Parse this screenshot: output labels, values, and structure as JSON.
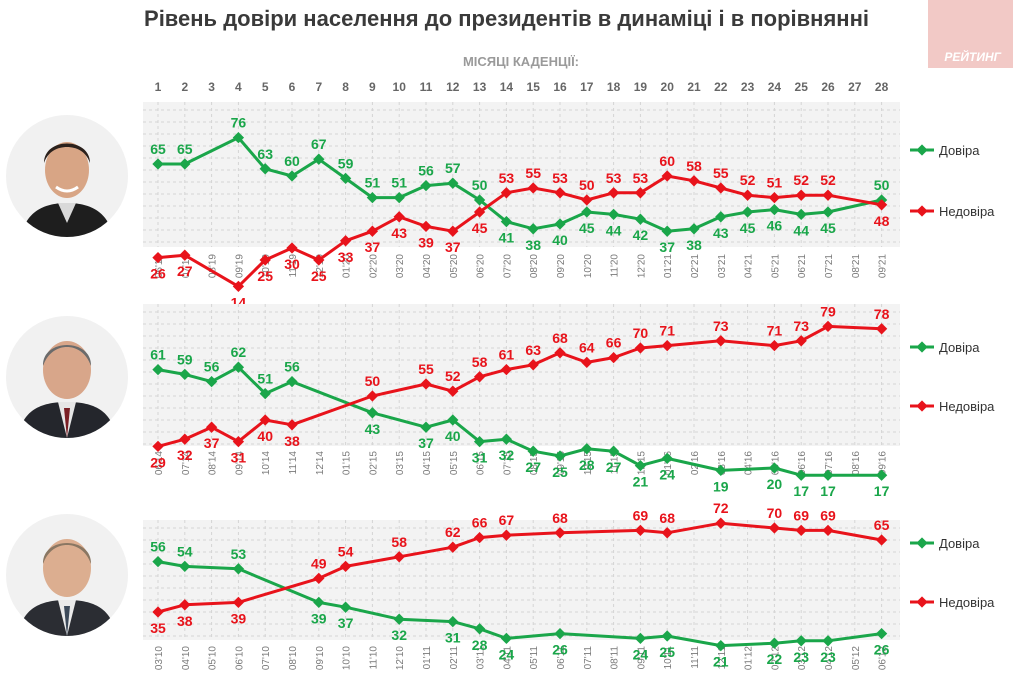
{
  "title": "Рівень довіри населення до президентів в динаміці і в порівнянні",
  "logo_text": "РЕЙТИНГ",
  "chart_data": {
    "type": "line",
    "axis_caption": "МІСЯЦІ КАДЕНЦІЇ:",
    "months": [
      1,
      2,
      3,
      4,
      5,
      6,
      7,
      8,
      9,
      10,
      11,
      12,
      13,
      14,
      15,
      16,
      17,
      18,
      19,
      20,
      21,
      22,
      23,
      24,
      25,
      26,
      27,
      28
    ],
    "ylim": [
      0,
      100
    ],
    "grid": true,
    "legend_position": "right",
    "colors": {
      "trust": "#1aa64a",
      "distrust": "#e8131b",
      "grid": "#d4d4d4",
      "plot_bg": "#f3f3f3",
      "tick": "#7a7a7a"
    },
    "panels": [
      {
        "portrait": "zelensky-portrait",
        "dates": [
          "06'19",
          "07'19",
          "08'19",
          "09'19",
          "10'19",
          "11'19",
          "12'19",
          "01'20",
          "02'20",
          "03'20",
          "04'20",
          "05'20",
          "06'20",
          "07'20",
          "08'20",
          "09'20",
          "10'20",
          "11'20",
          "12'20",
          "01'21",
          "02'21",
          "03'21",
          "04'21",
          "05'21",
          "06'21",
          "07'21",
          "08'21",
          "09'21"
        ],
        "series": [
          {
            "name": "Довіра",
            "values": [
              65,
              65,
              null,
              76,
              63,
              60,
              67,
              59,
              51,
              51,
              56,
              57,
              50,
              41,
              38,
              40,
              45,
              44,
              42,
              37,
              38,
              43,
              45,
              46,
              44,
              45,
              null,
              50
            ]
          },
          {
            "name": "Недовіра",
            "values": [
              26,
              27,
              null,
              14,
              25,
              30,
              25,
              33,
              37,
              43,
              39,
              37,
              45,
              53,
              55,
              53,
              50,
              53,
              53,
              60,
              58,
              55,
              52,
              51,
              52,
              52,
              null,
              48
            ]
          }
        ]
      },
      {
        "portrait": "poroshenko-portrait",
        "dates": [
          "06'14",
          "07'14",
          "08'14",
          "09'14",
          "10'14",
          "11'14",
          "12'14",
          "01'15",
          "02'15",
          "03'15",
          "04'15",
          "05'15",
          "06'15",
          "07'15",
          "08'15",
          "09'15",
          "10'15",
          "11'15",
          "12'15",
          "01'16",
          "02'16",
          "03'16",
          "04'16",
          "05'16",
          "06'16",
          "07'16",
          "08'16",
          "09'16"
        ],
        "series": [
          {
            "name": "Довіра",
            "values": [
              61,
              59,
              56,
              62,
              51,
              56,
              null,
              null,
              43,
              null,
              37,
              40,
              31,
              32,
              27,
              25,
              28,
              27,
              21,
              24,
              null,
              19,
              null,
              20,
              17,
              17,
              null,
              17
            ]
          },
          {
            "name": "Недовіра",
            "values": [
              29,
              32,
              37,
              31,
              40,
              38,
              null,
              null,
              50,
              null,
              55,
              52,
              58,
              61,
              63,
              68,
              64,
              66,
              70,
              71,
              null,
              73,
              null,
              71,
              73,
              79,
              null,
              78
            ]
          }
        ]
      },
      {
        "portrait": "yanukovych-portrait",
        "dates": [
          "03'10",
          "04'10",
          "05'10",
          "06'10",
          "07'10",
          "08'10",
          "09'10",
          "10'10",
          "11'10",
          "12'10",
          "01'11",
          "02'11",
          "03'11",
          "04'11",
          "05'11",
          "06'11",
          "07'11",
          "08'11",
          "09'11",
          "10'11",
          "11'11",
          "12'11",
          "01'12",
          "02'12",
          "03'12",
          "04'12",
          "05'12",
          "06'12"
        ],
        "series": [
          {
            "name": "Довіра",
            "values": [
              56,
              54,
              null,
              53,
              null,
              null,
              39,
              37,
              null,
              32,
              null,
              31,
              28,
              24,
              null,
              26,
              null,
              null,
              24,
              25,
              null,
              21,
              null,
              22,
              23,
              23,
              null,
              26
            ]
          },
          {
            "name": "Недовіра",
            "values": [
              35,
              38,
              null,
              39,
              null,
              null,
              49,
              54,
              null,
              58,
              null,
              62,
              66,
              67,
              null,
              68,
              null,
              null,
              69,
              68,
              null,
              72,
              null,
              70,
              69,
              69,
              null,
              65
            ]
          }
        ]
      }
    ]
  }
}
